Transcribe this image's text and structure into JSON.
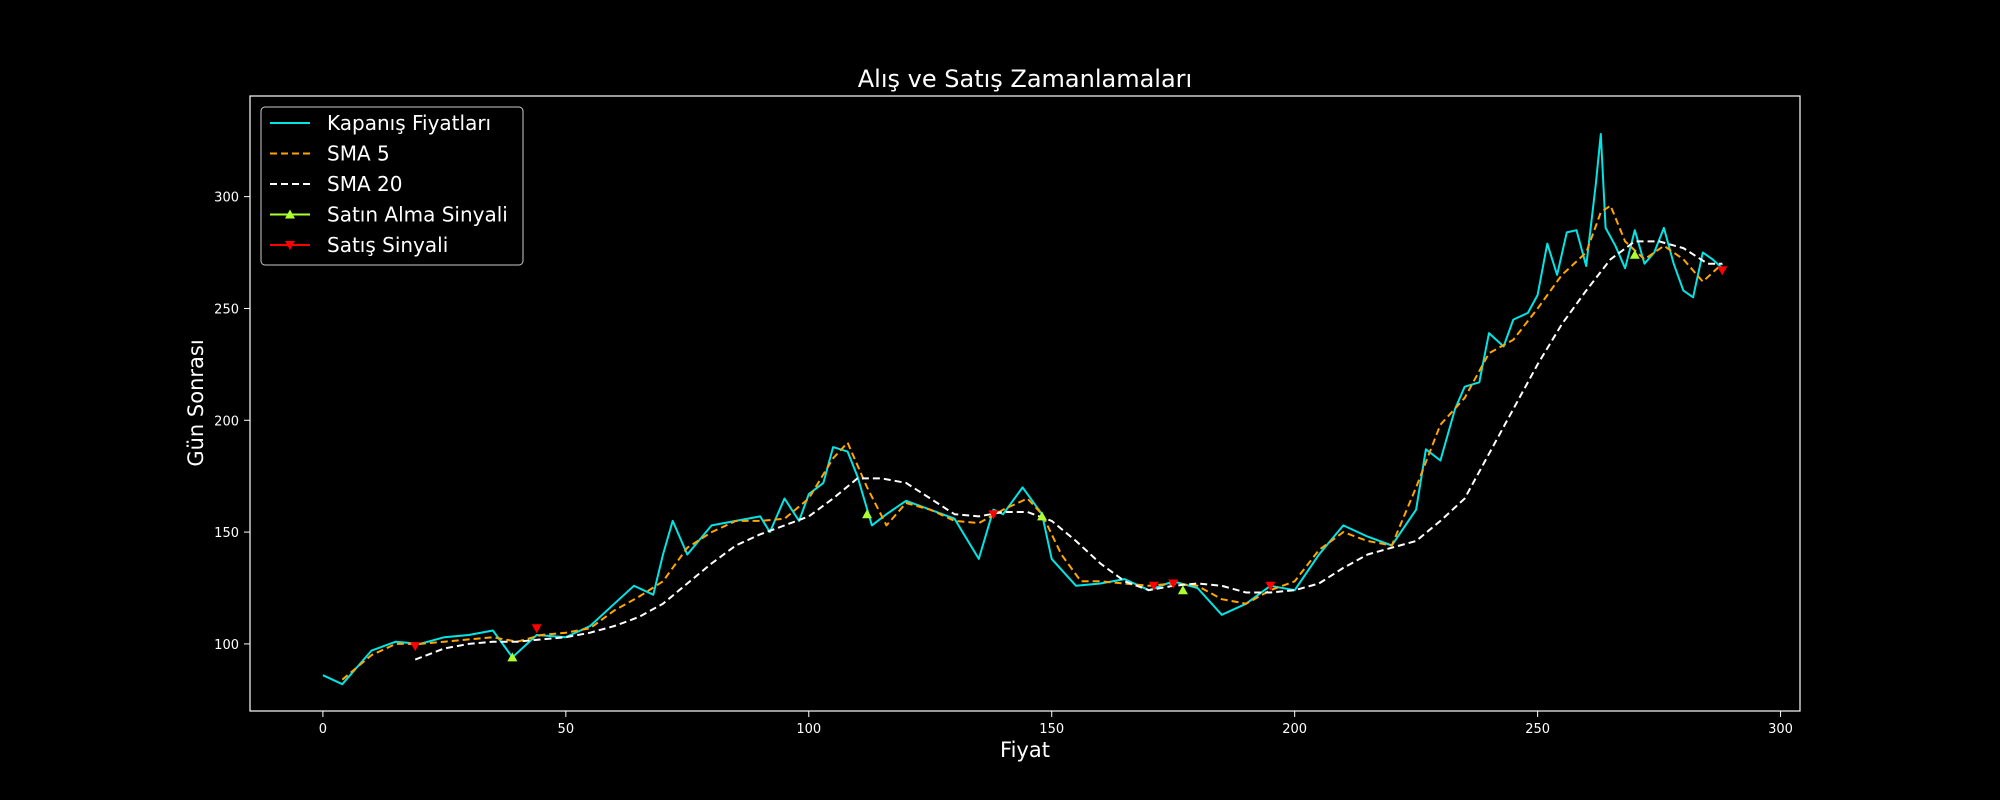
{
  "chart_data": {
    "type": "line",
    "title": "Alış ve Satış Zamanlamaları",
    "xlabel": "Fiyat",
    "ylabel": "Gün Sonrası",
    "xlim": [
      -15,
      304
    ],
    "ylim": [
      70,
      345
    ],
    "xticks": [
      0,
      50,
      100,
      150,
      200,
      250,
      300
    ],
    "yticks": [
      100,
      150,
      200,
      250,
      300
    ],
    "grid": false,
    "legend_position": "upper-left",
    "colors": {
      "background": "#000000",
      "axes": "#ffffff",
      "close": "#00e5e5",
      "sma5": "#ffa500",
      "sma20": "#ffffff",
      "buy": "#adff2f",
      "sell": "#ff0000"
    },
    "legend": [
      {
        "label": "Kapanış Fiyatları",
        "key": "close",
        "style": "solid"
      },
      {
        "label": "SMA 5",
        "key": "sma5",
        "style": "dashed"
      },
      {
        "label": "SMA 20",
        "key": "sma20",
        "style": "dashed"
      },
      {
        "label": "Satın Alma Sinyali",
        "key": "buy",
        "style": "marker-up"
      },
      {
        "label": "Satış Sinyali",
        "key": "sell",
        "style": "marker-down"
      }
    ],
    "series": [
      {
        "name": "Kapanış Fiyatları",
        "key": "close",
        "x": [
          0,
          4,
          10,
          15,
          20,
          25,
          30,
          35,
          39,
          44,
          50,
          55,
          60,
          64,
          68,
          70,
          72,
          75,
          80,
          85,
          90,
          92,
          95,
          98,
          100,
          103,
          105,
          108,
          110,
          113,
          116,
          120,
          125,
          130,
          135,
          138,
          140,
          144,
          148,
          150,
          155,
          160,
          165,
          170,
          175,
          180,
          185,
          190,
          195,
          200,
          205,
          210,
          215,
          220,
          225,
          227,
          230,
          233,
          235,
          238,
          240,
          243,
          245,
          248,
          250,
          252,
          254,
          256,
          258,
          260,
          262,
          263,
          264,
          266,
          268,
          270,
          272,
          274,
          276,
          278,
          280,
          282,
          284,
          286,
          288
        ],
        "values": [
          86,
          82,
          97,
          101,
          100,
          103,
          104,
          106,
          94,
          104,
          103,
          108,
          118,
          126,
          122,
          140,
          155,
          140,
          153,
          155,
          157,
          150,
          165,
          155,
          167,
          172,
          188,
          186,
          175,
          153,
          158,
          164,
          160,
          156,
          138,
          160,
          158,
          170,
          158,
          138,
          126,
          127,
          129,
          124,
          128,
          125,
          113,
          118,
          126,
          124,
          140,
          153,
          148,
          144,
          160,
          187,
          182,
          205,
          215,
          217,
          239,
          233,
          245,
          248,
          256,
          279,
          265,
          284,
          285,
          269,
          306,
          328,
          286,
          278,
          268,
          285,
          270,
          275,
          286,
          270,
          258,
          255,
          275,
          272,
          268
        ]
      },
      {
        "name": "SMA 5",
        "key": "sma5",
        "x": [
          4,
          10,
          15,
          20,
          25,
          30,
          35,
          40,
          45,
          50,
          55,
          60,
          65,
          70,
          75,
          80,
          85,
          90,
          95,
          100,
          105,
          108,
          112,
          116,
          120,
          125,
          130,
          135,
          140,
          145,
          148,
          152,
          156,
          160,
          165,
          170,
          175,
          180,
          185,
          190,
          195,
          200,
          205,
          210,
          215,
          220,
          225,
          230,
          235,
          240,
          245,
          250,
          255,
          260,
          263,
          265,
          268,
          272,
          276,
          280,
          284,
          288
        ],
        "values": [
          84,
          95,
          100,
          100,
          101,
          102,
          103,
          101,
          104,
          105,
          107,
          115,
          121,
          128,
          143,
          150,
          155,
          155,
          156,
          165,
          183,
          190,
          170,
          153,
          163,
          160,
          155,
          154,
          160,
          165,
          158,
          140,
          128,
          128,
          127,
          126,
          127,
          126,
          120,
          118,
          124,
          128,
          142,
          150,
          146,
          144,
          170,
          198,
          210,
          230,
          236,
          250,
          265,
          275,
          293,
          296,
          280,
          272,
          278,
          272,
          262,
          270
        ]
      },
      {
        "name": "SMA 20",
        "key": "sma20",
        "x": [
          19,
          25,
          30,
          35,
          40,
          45,
          50,
          55,
          60,
          65,
          70,
          75,
          80,
          85,
          90,
          95,
          100,
          105,
          110,
          115,
          120,
          125,
          130,
          135,
          140,
          145,
          150,
          155,
          160,
          165,
          170,
          175,
          180,
          185,
          190,
          195,
          200,
          205,
          210,
          215,
          220,
          225,
          230,
          235,
          240,
          245,
          250,
          255,
          260,
          265,
          270,
          275,
          280,
          285,
          288
        ],
        "values": [
          93,
          98,
          100,
          101,
          101,
          102,
          103,
          105,
          108,
          112,
          118,
          127,
          136,
          144,
          149,
          153,
          157,
          165,
          174,
          174,
          172,
          165,
          158,
          157,
          159,
          159,
          155,
          146,
          136,
          128,
          124,
          126,
          127,
          126,
          123,
          123,
          124,
          127,
          134,
          140,
          143,
          146,
          155,
          165,
          185,
          205,
          225,
          243,
          258,
          272,
          280,
          280,
          277,
          270,
          270
        ]
      }
    ],
    "buy_signals": {
      "name": "Satın Alma Sinyali",
      "x": [
        39,
        112,
        148,
        177,
        270
      ],
      "y": [
        94,
        158,
        157,
        124,
        274
      ]
    },
    "sell_signals": {
      "name": "Satış Sinyali",
      "x": [
        19,
        44,
        138,
        171,
        175,
        195,
        288
      ],
      "y": [
        99,
        107,
        158,
        126,
        127,
        126,
        267
      ]
    }
  }
}
